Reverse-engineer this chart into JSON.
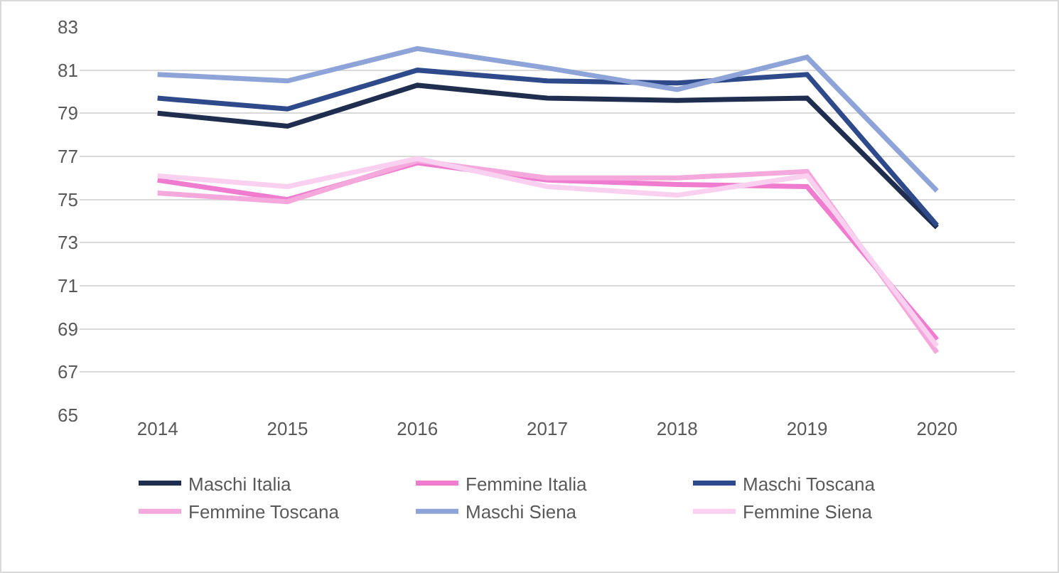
{
  "chart_data": {
    "type": "line",
    "categories": [
      "2014",
      "2015",
      "2016",
      "2017",
      "2018",
      "2019",
      "2020"
    ],
    "series": [
      {
        "name": "Maschi Italia",
        "color": "#1f2d4f",
        "values": [
          79.0,
          78.4,
          80.3,
          79.7,
          79.6,
          79.7,
          73.7
        ]
      },
      {
        "name": "Femmine Italia",
        "color": "#f07cd0",
        "values": [
          75.9,
          75.0,
          76.7,
          75.9,
          75.7,
          75.6,
          68.5
        ]
      },
      {
        "name": "Maschi Toscana",
        "color": "#2e4a8a",
        "values": [
          79.7,
          79.2,
          81.0,
          80.5,
          80.4,
          80.8,
          73.8
        ]
      },
      {
        "name": "Femmine Toscana",
        "color": "#f5a8dc",
        "values": [
          75.3,
          74.9,
          76.8,
          76.0,
          76.0,
          76.3,
          67.9
        ]
      },
      {
        "name": "Maschi Siena",
        "color": "#8ea4d8",
        "values": [
          80.8,
          80.5,
          82.0,
          81.1,
          80.1,
          81.6,
          75.4
        ]
      },
      {
        "name": "Femmine Siena",
        "color": "#fad0f0",
        "values": [
          76.1,
          75.6,
          76.9,
          75.6,
          75.2,
          76.1,
          68.2
        ]
      }
    ],
    "ylim": [
      65,
      83
    ],
    "yticks": [
      65,
      67,
      69,
      71,
      73,
      75,
      77,
      79,
      81,
      83
    ],
    "grid": "y",
    "legend": "bottom",
    "marker": "none",
    "line_style": "solid"
  }
}
